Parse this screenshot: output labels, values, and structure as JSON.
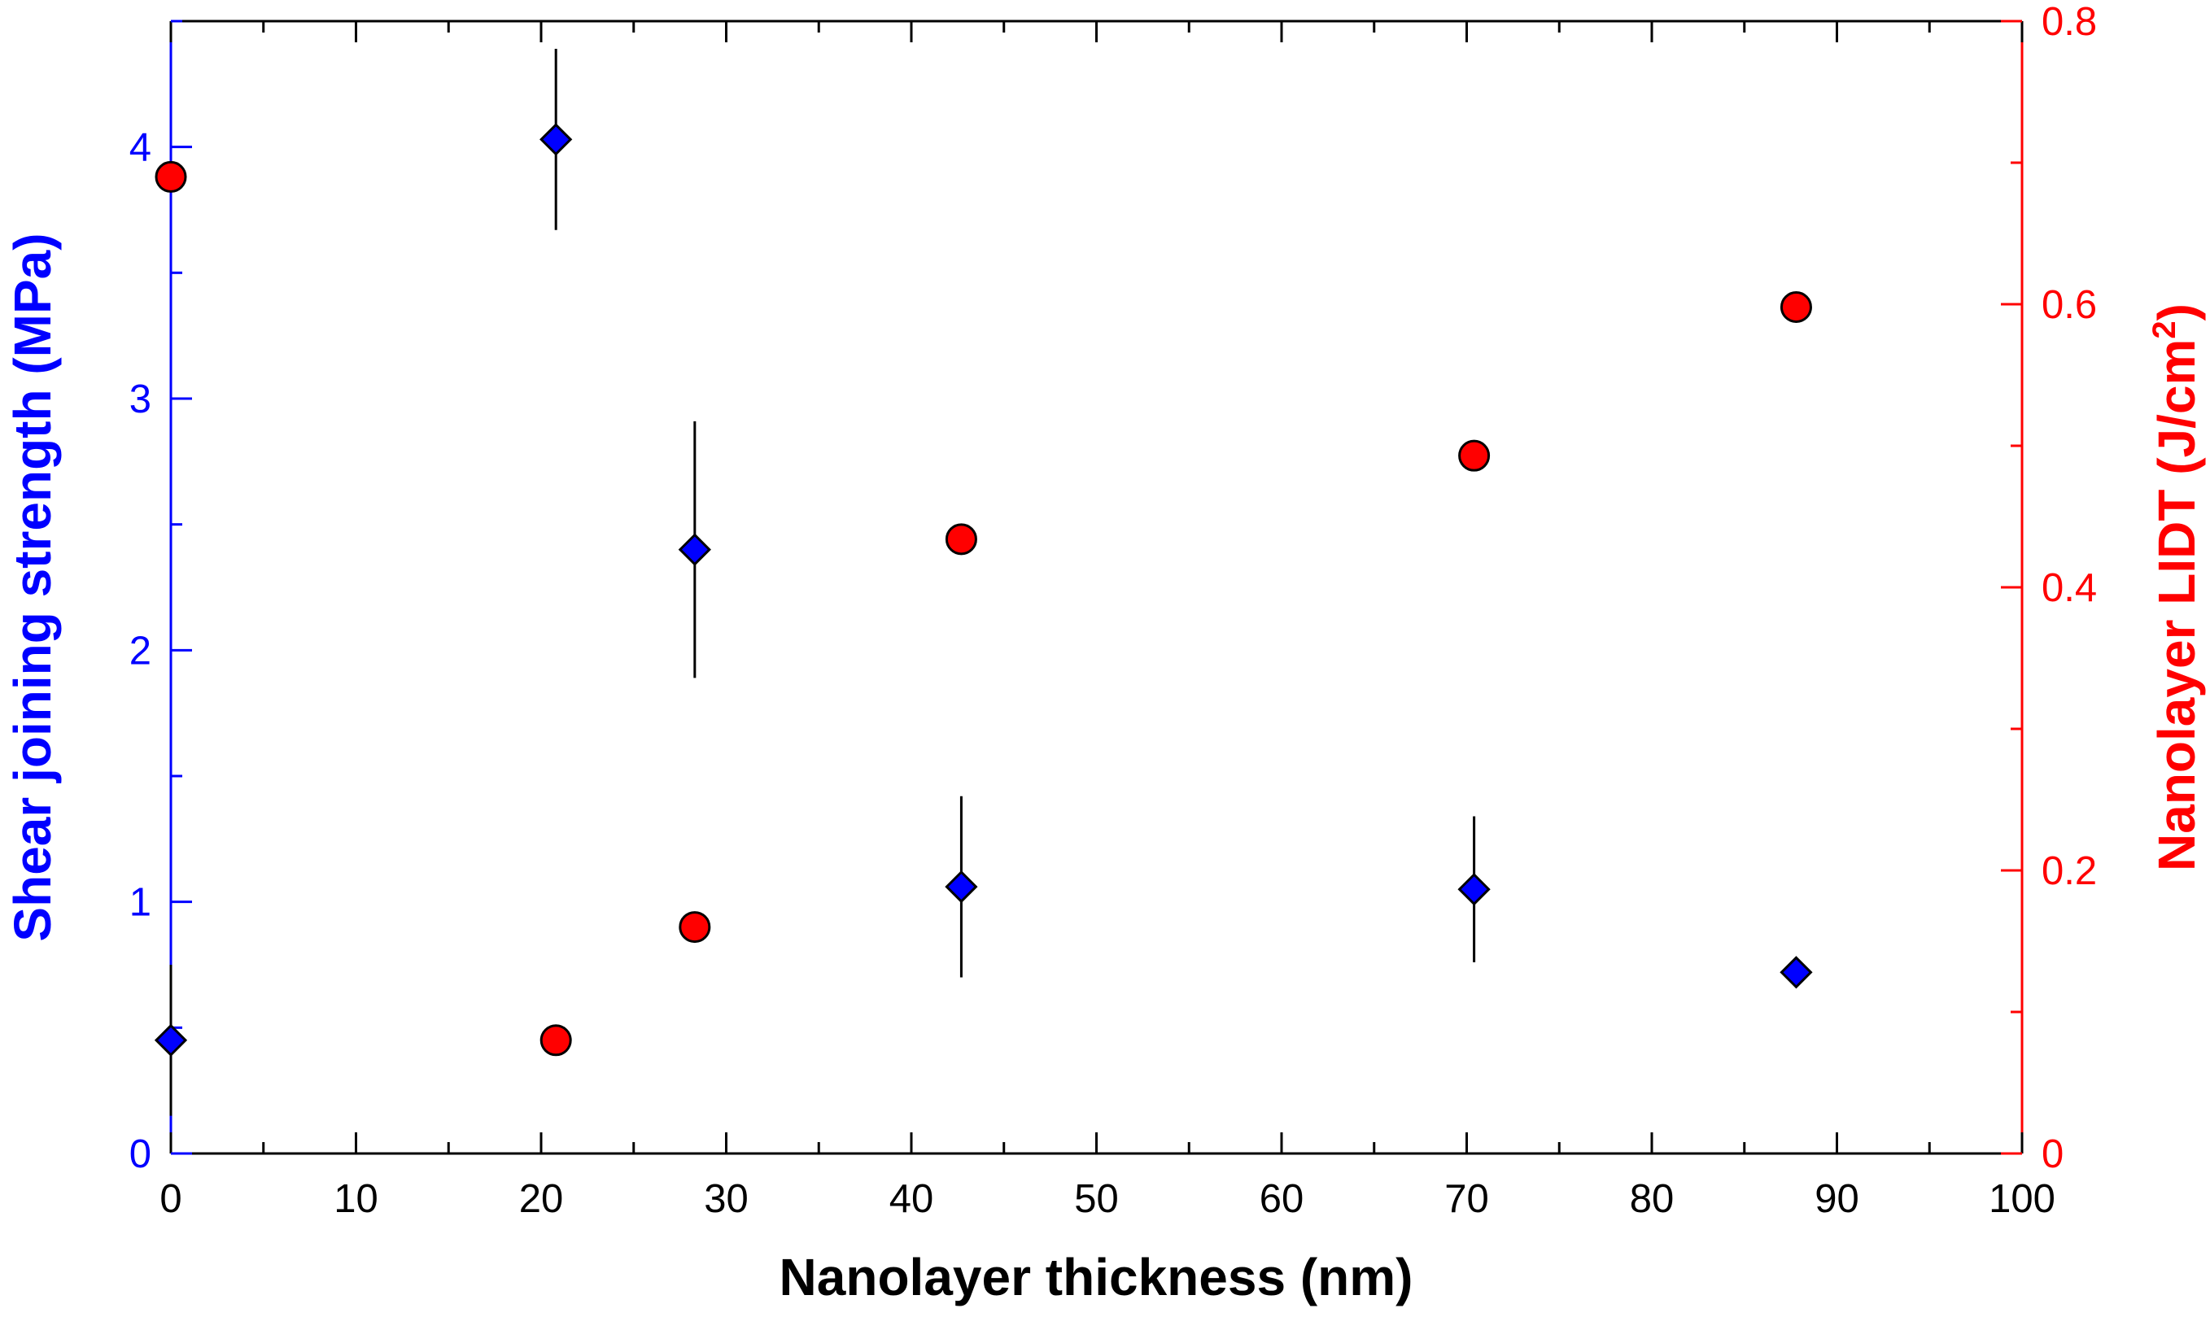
{
  "chart_data": {
    "type": "scatter",
    "title": "",
    "xlabel": "Nanolayer thickness (nm)",
    "ylabel_left": "Shear joining strength (MPa)",
    "ylabel_right_main": "Nanolayer LIDT (J/cm",
    "ylabel_right_sup": "2",
    "ylabel_right_end": ")",
    "xlim": [
      0,
      100
    ],
    "ylim_left": [
      0,
      4.5
    ],
    "ylim_right": [
      0,
      0.8
    ],
    "x_ticks": [
      0,
      10,
      20,
      30,
      40,
      50,
      60,
      70,
      80,
      90,
      100
    ],
    "x_tick_labels": [
      "0",
      "10",
      "20",
      "30",
      "40",
      "50",
      "60",
      "70",
      "80",
      "90",
      "100"
    ],
    "y_left_ticks": [
      0,
      1,
      2,
      3,
      4
    ],
    "y_left_tick_labels": [
      "0",
      "1",
      "2",
      "3",
      "4"
    ],
    "y_right_ticks": [
      0,
      0.2,
      0.4,
      0.6,
      0.8
    ],
    "y_right_tick_labels": [
      "0",
      "0.2",
      "0.4",
      "0.6",
      "0.8"
    ],
    "grid": false,
    "colors": {
      "left_axis": "#0000ff",
      "right_axis": "#ff0000",
      "diamond_fill": "#0000ff",
      "circle_fill": "#ff0000",
      "frame": "#000000"
    },
    "series": [
      {
        "name": "Shear joining strength",
        "axis": "left",
        "marker": "diamond",
        "x": [
          0,
          20.8,
          28.3,
          42.7,
          70.4,
          87.8
        ],
        "y": [
          0.45,
          4.03,
          2.4,
          1.06,
          1.05,
          0.72
        ],
        "err": [
          0.3,
          0.36,
          0.51,
          0.36,
          0.29,
          0.06
        ]
      },
      {
        "name": "Nanolayer LIDT",
        "axis": "right",
        "marker": "circle",
        "x": [
          0,
          20.8,
          28.3,
          42.7,
          70.4,
          87.8
        ],
        "y": [
          0.69,
          0.08,
          0.16,
          0.434,
          0.493,
          0.598
        ]
      }
    ]
  }
}
